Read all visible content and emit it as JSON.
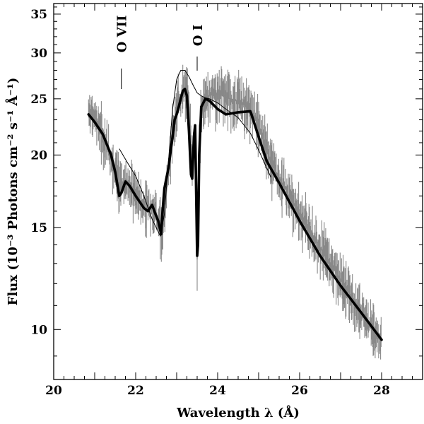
{
  "chart_data": {
    "type": "line",
    "xlabel": "Wavelength λ  (Å)",
    "ylabel": "Flux   (10⁻³ Photons cm⁻² s⁻¹ Å⁻¹)",
    "xlim": [
      20,
      29
    ],
    "ylim": [
      8.2,
      36.5
    ],
    "y_scale": "log",
    "x_ticks": [
      20,
      22,
      24,
      26,
      28
    ],
    "y_ticks": [
      10,
      15,
      20,
      25,
      30,
      35
    ],
    "annotations": [
      {
        "text": "O VII",
        "x": 21.65
      },
      {
        "text": "O I",
        "x": 23.5
      }
    ],
    "colors": {
      "data": "#888888",
      "model": "#000000",
      "continuum": "#000000"
    },
    "series": [
      {
        "role": "model",
        "x": [
          20.85,
          21.0,
          21.2,
          21.4,
          21.5,
          21.6,
          21.65,
          21.75,
          21.85,
          22.0,
          22.2,
          22.3,
          22.4,
          22.5,
          22.55,
          22.62,
          22.65,
          22.7,
          22.8,
          22.9,
          22.95,
          23.0,
          23.05,
          23.1,
          23.15,
          23.2,
          23.25,
          23.3,
          23.35,
          23.38,
          23.42,
          23.45,
          23.5,
          23.52,
          23.55,
          23.6,
          23.7,
          23.8,
          24.0,
          24.2,
          24.5,
          24.8,
          25.0,
          25.2,
          25.5,
          26.0,
          26.5,
          27.0,
          27.5,
          28.0
        ],
        "y": [
          23.5,
          22.8,
          21.7,
          20.0,
          18.7,
          17.0,
          17.2,
          18.0,
          17.7,
          17.0,
          16.2,
          16.0,
          16.4,
          15.7,
          15.4,
          14.6,
          15.8,
          17.5,
          19.0,
          21.5,
          23.0,
          23.5,
          24.2,
          25.0,
          25.8,
          26.0,
          25.3,
          22.0,
          18.5,
          18.2,
          21.5,
          22.5,
          13.4,
          14.0,
          20.0,
          24.2,
          25.0,
          24.8,
          24.0,
          23.5,
          23.7,
          23.8,
          21.5,
          19.5,
          17.9,
          15.4,
          13.4,
          11.9,
          10.7,
          9.6
        ]
      },
      {
        "role": "continuum",
        "x": [
          21.6,
          21.8,
          22.0,
          22.2,
          22.4,
          22.6,
          22.7,
          22.8,
          22.9,
          23.0,
          23.1,
          23.2,
          23.3,
          23.4,
          23.5,
          23.6,
          23.7,
          23.8,
          24.0,
          24.2,
          24.5,
          24.8,
          25.0,
          25.3
        ],
        "y": [
          20.5,
          19.4,
          18.4,
          17.0,
          15.5,
          14.5,
          15.8,
          19.5,
          24.0,
          27.0,
          28.0,
          28.0,
          27.3,
          26.4,
          25.6,
          25.3,
          25.1,
          25.0,
          24.6,
          24.0,
          23.2,
          21.8,
          20.4,
          18.3
        ]
      },
      {
        "role": "data",
        "x": [
          20.85,
          20.9,
          21.0,
          21.1,
          21.2,
          21.3,
          21.4,
          21.5,
          21.6,
          21.7,
          21.8,
          21.9,
          22.0,
          22.1,
          22.2,
          22.3,
          22.4,
          22.5,
          22.6,
          22.65,
          22.7,
          22.8,
          22.9,
          23.0,
          23.1,
          23.2,
          23.3,
          23.38,
          23.42,
          23.45,
          23.5,
          23.52,
          23.55,
          23.6,
          23.7,
          23.8,
          23.9,
          24.0,
          24.1,
          24.2,
          24.3,
          24.4,
          24.5,
          24.6,
          24.7,
          24.8,
          24.9,
          25.0,
          25.1,
          25.2,
          25.3,
          25.5,
          25.7,
          26.0,
          26.3,
          26.6,
          27.0,
          27.3,
          27.6,
          28.0
        ],
        "y": [
          23.5,
          23.8,
          23.0,
          22.6,
          21.5,
          20.8,
          19.6,
          19.0,
          17.8,
          17.6,
          18.0,
          17.4,
          17.2,
          16.6,
          16.3,
          16.0,
          16.3,
          15.8,
          15.2,
          14.5,
          15.8,
          18.8,
          21.8,
          24.2,
          25.0,
          25.8,
          24.8,
          18.6,
          21.2,
          22.0,
          13.2,
          14.6,
          20.5,
          24.2,
          25.1,
          25.3,
          25.6,
          25.4,
          25.6,
          25.2,
          25.0,
          24.9,
          24.8,
          24.6,
          24.2,
          23.9,
          23.2,
          22.4,
          21.4,
          20.4,
          19.4,
          18.3,
          17.2,
          15.8,
          14.6,
          13.5,
          12.2,
          11.3,
          10.5,
          9.6
        ]
      }
    ]
  }
}
